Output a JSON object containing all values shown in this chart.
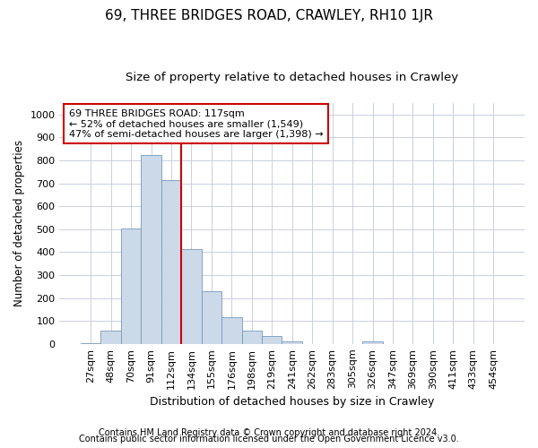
{
  "title": "69, THREE BRIDGES ROAD, CRAWLEY, RH10 1JR",
  "subtitle": "Size of property relative to detached houses in Crawley",
  "xlabel": "Distribution of detached houses by size in Crawley",
  "ylabel": "Number of detached properties",
  "categories": [
    "27sqm",
    "48sqm",
    "70sqm",
    "91sqm",
    "112sqm",
    "134sqm",
    "155sqm",
    "176sqm",
    "198sqm",
    "219sqm",
    "241sqm",
    "262sqm",
    "283sqm",
    "305sqm",
    "326sqm",
    "347sqm",
    "369sqm",
    "390sqm",
    "411sqm",
    "433sqm",
    "454sqm"
  ],
  "values": [
    5,
    58,
    505,
    825,
    715,
    415,
    230,
    118,
    58,
    35,
    12,
    0,
    0,
    0,
    10,
    0,
    0,
    0,
    0,
    0,
    0
  ],
  "bar_color": "#ccd9e8",
  "bar_edge_color": "#7799bb",
  "vline_color": "#cc0000",
  "annotation_text": "69 THREE BRIDGES ROAD: 117sqm\n← 52% of detached houses are smaller (1,549)\n47% of semi-detached houses are larger (1,398) →",
  "annotation_box_color": "#ffffff",
  "annotation_box_edge": "#cc0000",
  "ylim": [
    0,
    1050
  ],
  "yticks": [
    0,
    100,
    200,
    300,
    400,
    500,
    600,
    700,
    800,
    900,
    1000
  ],
  "footer1": "Contains HM Land Registry data © Crown copyright and database right 2024.",
  "footer2": "Contains public sector information licensed under the Open Government Licence v3.0.",
  "bg_color": "#ffffff",
  "grid_color": "#c8cfe0",
  "title_fontsize": 11,
  "subtitle_fontsize": 9.5,
  "xlabel_fontsize": 9,
  "ylabel_fontsize": 8.5,
  "tick_fontsize": 8,
  "annot_fontsize": 8,
  "footer_fontsize": 7
}
